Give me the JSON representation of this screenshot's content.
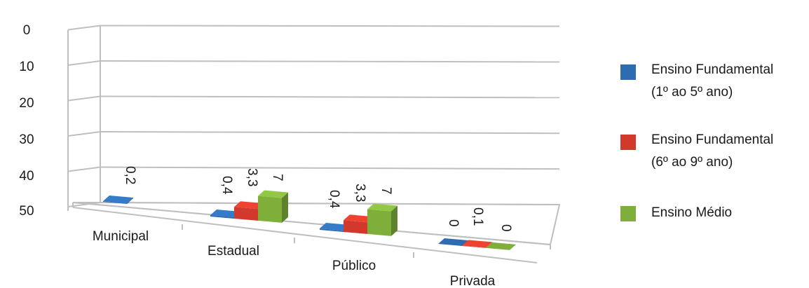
{
  "chart_data": {
    "type": "bar",
    "categories": [
      "Municipal",
      "Estadual",
      "Público",
      "Privada"
    ],
    "series": [
      {
        "name": "Ensino Fundamental (1º ao 5º ano)",
        "values": [
          0.2,
          0.4,
          0.4,
          0
        ],
        "labels": [
          "0,2",
          "0,4",
          "0,4",
          "0"
        ],
        "color": "#2E6BB0"
      },
      {
        "name": "Ensino Fundamental (6º ao 9º ano)",
        "values": [
          null,
          3.3,
          3.3,
          0.1
        ],
        "labels": [
          "",
          "3,3",
          "3,3",
          "0,1"
        ],
        "color": "#D0392B"
      },
      {
        "name": "Ensino  Médio",
        "values": [
          null,
          7,
          7,
          0
        ],
        "labels": [
          "",
          "7",
          "7",
          "0"
        ],
        "color": "#7FAE3A"
      }
    ],
    "yticks": [
      "0",
      "10",
      "20",
      "30",
      "40",
      "50"
    ],
    "ylim": [
      0,
      50
    ],
    "grid": true,
    "three_d": true,
    "legend_position": "right"
  },
  "legend": {
    "items": [
      {
        "label_line1": "Ensino Fundamental",
        "label_line2": "(1º ao 5º ano)",
        "color": "#2E6BB0"
      },
      {
        "label_line1": "Ensino Fundamental",
        "label_line2": "(6º ao 9º ano)",
        "color": "#D0392B"
      },
      {
        "label_line1": "Ensino  Médio",
        "label_line2": "",
        "color": "#7FAE3A"
      }
    ]
  }
}
